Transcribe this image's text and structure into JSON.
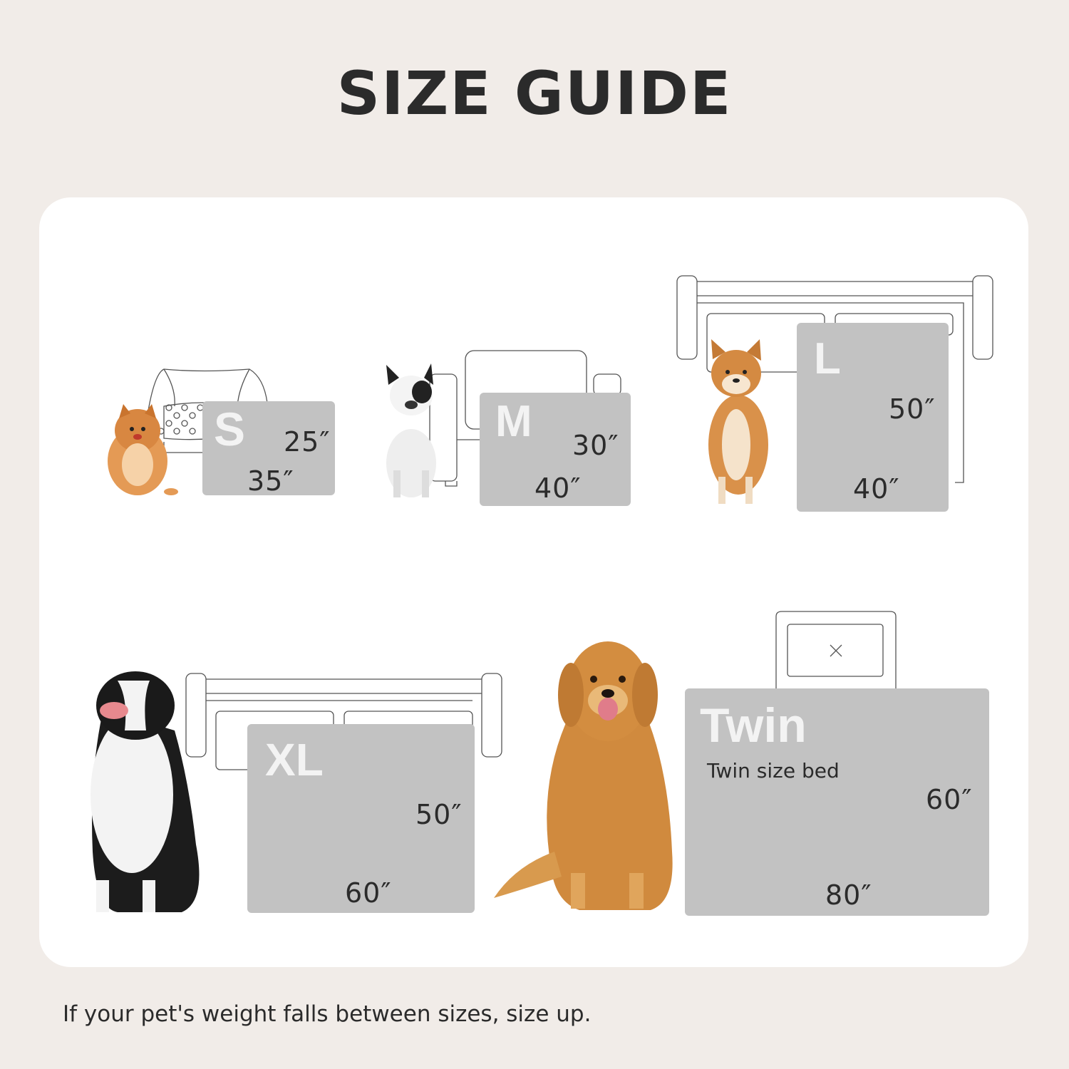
{
  "title": "SIZE GUIDE",
  "colors": {
    "background": "#f1ece8",
    "card": "#ffffff",
    "size_box": "#c2c2c2",
    "size_letter": "#f3f3f3",
    "text": "#2b2b2b"
  },
  "sizes": [
    {
      "label": "S",
      "width": "25″",
      "length": "35″",
      "dog": "pomeranian"
    },
    {
      "label": "M",
      "width": "30″",
      "length": "40″",
      "dog": "french-bulldog"
    },
    {
      "label": "L",
      "width": "50″",
      "length": "40″",
      "dog": "shiba-inu"
    },
    {
      "label": "XL",
      "width": "50″",
      "length": "60″",
      "dog": "border-collie"
    },
    {
      "label": "Twin",
      "note": "Twin size bed",
      "width": "60″",
      "length": "80″",
      "dog": "golden-retriever"
    }
  ],
  "footer": "If your pet's weight falls between sizes, size up."
}
